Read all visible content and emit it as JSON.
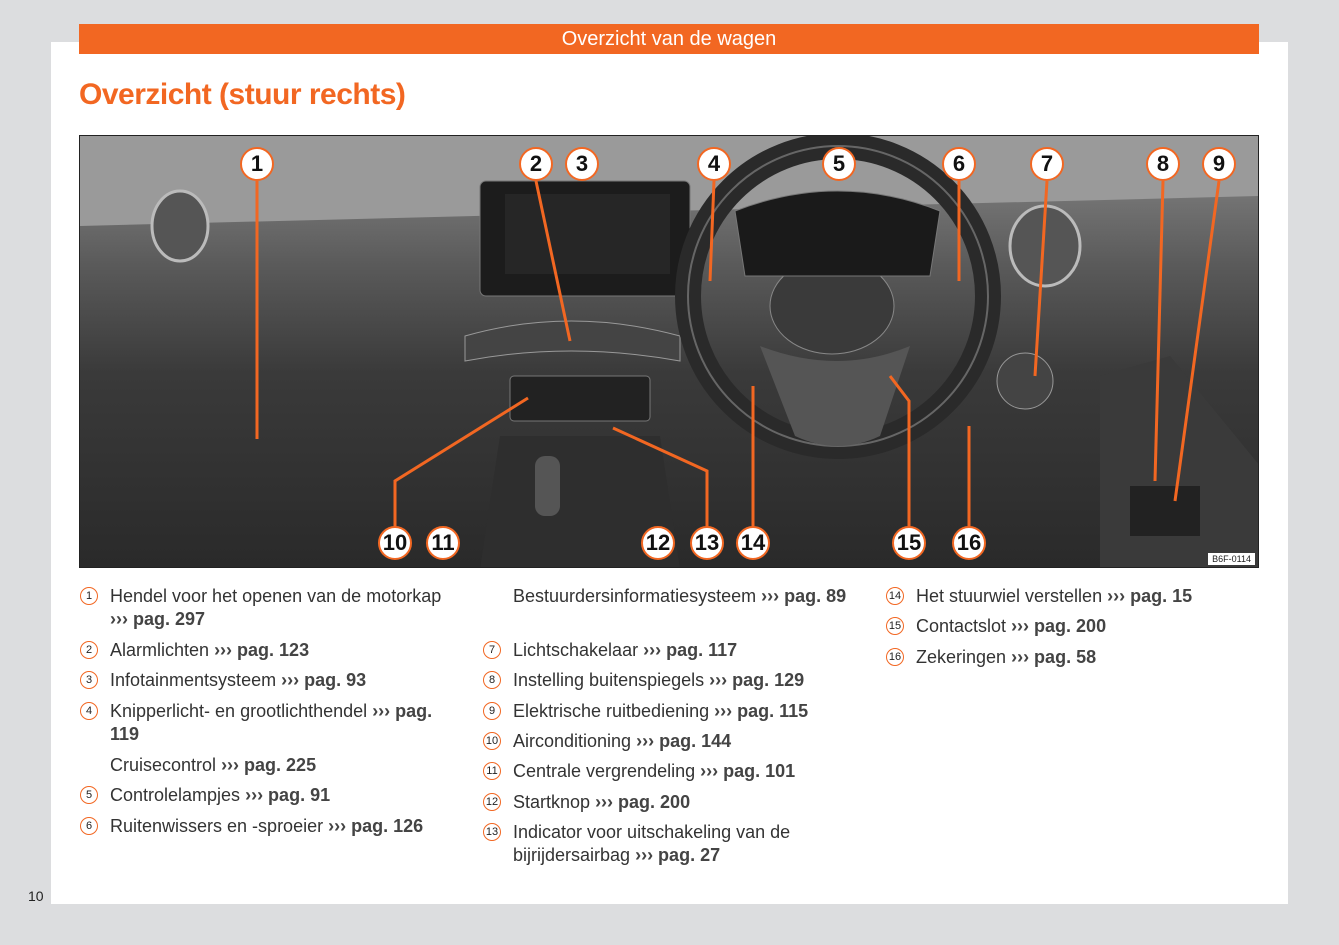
{
  "header": {
    "section": "Overzicht van de wagen",
    "title": "Overzicht (stuur rechts)"
  },
  "figure": {
    "code": "B6F-0114",
    "callouts": [
      "1",
      "2",
      "3",
      "4",
      "5",
      "6",
      "7",
      "8",
      "9",
      "10",
      "11",
      "12",
      "13",
      "14",
      "15",
      "16"
    ]
  },
  "items": [
    {
      "num": "1",
      "text": "Hendel voor het openen van de motorkap",
      "ref": "››› pag. 297"
    },
    {
      "num": "2",
      "text": "Alarmlichten",
      "ref": "››› pag. 123"
    },
    {
      "num": "3",
      "text": "Infotainmentsysteem",
      "ref": "››› pag. 93"
    },
    {
      "num": "4",
      "text": "Knipperlicht- en grootlichthendel",
      "ref": "››› pag. 119"
    },
    {
      "num": "",
      "text": "Cruisecontrol",
      "ref": "››› pag. 225"
    },
    {
      "num": "5",
      "text": "Controlelampjes",
      "ref": "››› pag. 91"
    },
    {
      "num": "6",
      "text": "Ruitenwissers en -sproeier",
      "ref": "››› pag. 126"
    },
    {
      "num": "",
      "text": "Bestuurdersinformatiesysteem",
      "ref": "››› pag. 89"
    },
    {
      "num": "7",
      "text": "Lichtschakelaar",
      "ref": "››› pag. 117"
    },
    {
      "num": "8",
      "text": "Instelling buitenspiegels",
      "ref": "››› pag. 129"
    },
    {
      "num": "9",
      "text": "Elektrische ruitbediening",
      "ref": "››› pag. 115"
    },
    {
      "num": "10",
      "text": "Airconditioning",
      "ref": "››› pag. 144"
    },
    {
      "num": "11",
      "text": "Centrale vergrendeling",
      "ref": "››› pag. 101"
    },
    {
      "num": "12",
      "text": "Startknop",
      "ref": "››› pag. 200"
    },
    {
      "num": "13",
      "text": "Indicator voor uitschakeling van de bijrijdersairbag",
      "ref": "››› pag. 27"
    },
    {
      "num": "14",
      "text": "Het stuurwiel verstellen",
      "ref": "››› pag. 15"
    },
    {
      "num": "15",
      "text": "Contactslot",
      "ref": "››› pag. 200"
    },
    {
      "num": "16",
      "text": "Zekeringen",
      "ref": "››› pag. 58"
    }
  ],
  "page_number": "10",
  "colors": {
    "accent": "#f26722",
    "background": "#dcdddf"
  }
}
